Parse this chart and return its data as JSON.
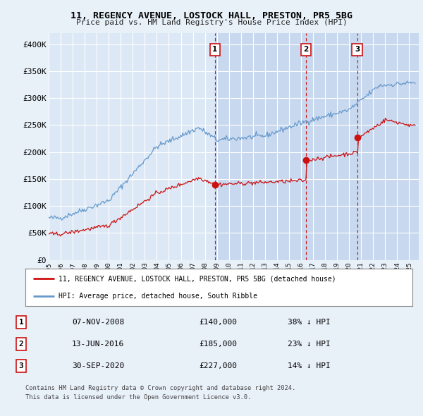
{
  "title": "11, REGENCY AVENUE, LOSTOCK HALL, PRESTON, PR5 5BG",
  "subtitle": "Price paid vs. HM Land Registry's House Price Index (HPI)",
  "bg_color": "#e8f0f8",
  "plot_bg_color": "#dce8f5",
  "shade_color": "#c8d8ee",
  "grid_color": "#ffffff",
  "hpi_color": "#6699cc",
  "price_color": "#cc1111",
  "ylim": [
    0,
    420000
  ],
  "yticks": [
    0,
    50000,
    100000,
    150000,
    200000,
    250000,
    300000,
    350000,
    400000
  ],
  "ytick_labels": [
    "£0",
    "£50K",
    "£100K",
    "£150K",
    "£200K",
    "£250K",
    "£300K",
    "£350K",
    "£400K"
  ],
  "sale_prices": [
    140000,
    185000,
    227000
  ],
  "sale_labels": [
    "1",
    "2",
    "3"
  ],
  "sale_pct": [
    "38% ↓ HPI",
    "23% ↓ HPI",
    "14% ↓ HPI"
  ],
  "sale_date_str": [
    "07-NOV-2008",
    "13-JUN-2016",
    "30-SEP-2020"
  ],
  "sale_price_str": [
    "£140,000",
    "£185,000",
    "£227,000"
  ],
  "legend_house": "11, REGENCY AVENUE, LOSTOCK HALL, PRESTON, PR5 5BG (detached house)",
  "legend_hpi": "HPI: Average price, detached house, South Ribble",
  "footnote1": "Contains HM Land Registry data © Crown copyright and database right 2024.",
  "footnote2": "This data is licensed under the Open Government Licence v3.0."
}
